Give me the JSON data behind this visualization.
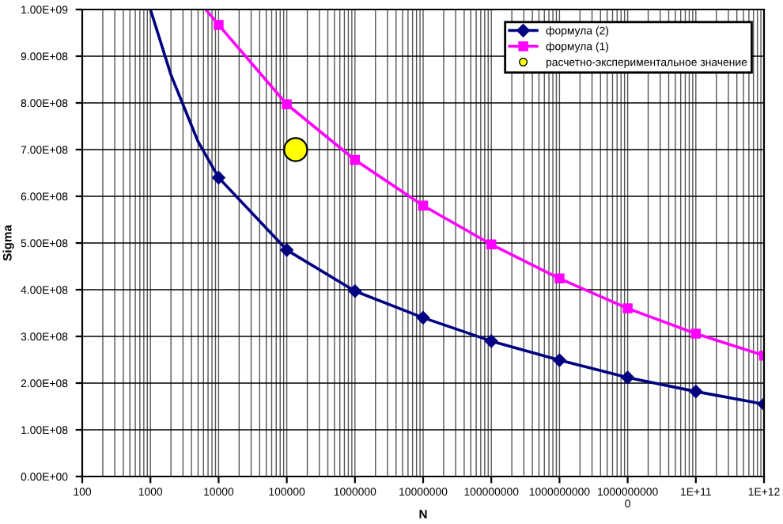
{
  "chart_data": {
    "type": "line",
    "xlabel": "N",
    "ylabel": "Sigma",
    "log": "x",
    "xlim": [
      100,
      1000000000000
    ],
    "xticks": [
      100,
      1000,
      10000,
      100000,
      1000000,
      10000000,
      100000000,
      1000000000,
      {
        "value": 10000000000,
        "label": "1000000000\n0"
      },
      {
        "value": 100000000000,
        "label": "1E+11"
      },
      {
        "value": 1000000000000,
        "label": "1E+12"
      }
    ],
    "ylim": [
      0,
      1000000000
    ],
    "yticks": [
      {
        "value": 0,
        "label": "0.00E+00"
      },
      {
        "value": 100000000,
        "label": "1.00E+08"
      },
      {
        "value": 200000000,
        "label": "2.00E+08"
      },
      {
        "value": 300000000,
        "label": "3.00E+08"
      },
      {
        "value": 400000000,
        "label": "4.00E+08"
      },
      {
        "value": 500000000,
        "label": "5.00E+08"
      },
      {
        "value": 600000000,
        "label": "6.00E+08"
      },
      {
        "value": 700000000,
        "label": "7.00E+08"
      },
      {
        "value": 800000000,
        "label": "8.00E+08"
      },
      {
        "value": 900000000,
        "label": "9.00E+08"
      },
      {
        "value": 1000000000,
        "label": "1.00E+09"
      }
    ],
    "grid": true,
    "legend": "top right",
    "series": [
      {
        "name": "формула (2)",
        "marker": "diamond",
        "color": "#000080",
        "x": [
          10000,
          100000,
          1000000,
          10000000,
          100000000,
          1000000000,
          10000000000,
          100000000000,
          1000000000000
        ],
        "values": [
          640000000,
          485000000,
          397000000,
          340000000,
          290000000,
          249000000,
          212000000,
          182000000,
          155000000
        ]
      },
      {
        "marker": "none",
        "color": "#000080",
        "x": [
          1000,
          2000,
          5000,
          10000
        ],
        "values": [
          1000000000,
          860000000,
          717000000,
          640000000
        ]
      },
      {
        "name": "формула (1)",
        "marker": "square",
        "color": "#ff00ff",
        "x": [
          10000,
          100000,
          1000000,
          10000000,
          100000000,
          1000000000,
          10000000000,
          100000000000,
          1000000000000
        ],
        "values": [
          967000000,
          797000000,
          678000000,
          580000000,
          497000000,
          424000000,
          360000000,
          306000000,
          259000000
        ]
      },
      {
        "marker": "none",
        "color": "#ff00ff",
        "x": [
          6500,
          10000
        ],
        "values": [
          1000000000,
          967000000
        ]
      },
      {
        "name": "расчетно-экспериментальное значение",
        "type": "scatter",
        "marker": "circle",
        "color": "#ffff00",
        "x": [
          135000
        ],
        "values": [
          700000000
        ]
      }
    ]
  }
}
